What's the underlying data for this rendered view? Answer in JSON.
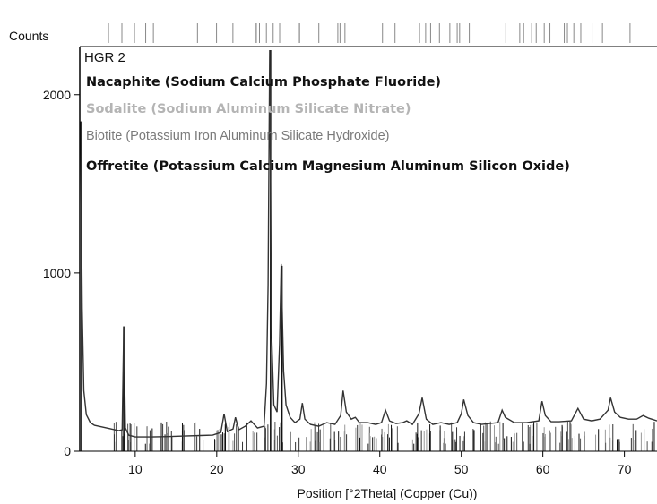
{
  "chart_data": {
    "type": "line",
    "title": "",
    "ylabel": "Counts",
    "xlabel": "Position [°2Theta] (Copper (Cu))",
    "sample_label": "HGR 2",
    "xlim": [
      3.2,
      74
    ],
    "ylim": [
      0,
      2270
    ],
    "x_ticks": [
      10,
      20,
      30,
      40,
      50,
      60,
      70
    ],
    "y_ticks": [
      0,
      1000,
      2000
    ],
    "grid": false,
    "legend_position": "top-left",
    "legend": [
      {
        "name": "Nacaphite (Sodium Calcium Phosphate Fluoride)",
        "color": "#111111"
      },
      {
        "name": "Sodalite (Sodium Aluminum Silicate Nitrate)",
        "color": "#b4b4b4"
      },
      {
        "name": "Biotite (Potassium Iron Aluminum Silicate Hydroxide)",
        "color": "#7a7a7a"
      },
      {
        "name": "Offretite (Potassium Calcium Magnesium Aluminum Silicon Oxide)",
        "color": "#111111"
      }
    ],
    "series": [
      {
        "color": "#333333",
        "points": [
          [
            3.3,
            1850
          ],
          [
            3.5,
            800
          ],
          [
            3.7,
            340
          ],
          [
            4.0,
            205
          ],
          [
            4.5,
            160
          ],
          [
            5,
            145
          ],
          [
            6,
            135
          ],
          [
            7,
            125
          ],
          [
            8,
            115
          ],
          [
            8.4,
            120
          ],
          [
            8.6,
            700
          ],
          [
            8.8,
            130
          ],
          [
            9.2,
            90
          ],
          [
            10,
            80
          ],
          [
            12,
            80
          ],
          [
            14,
            82
          ],
          [
            16,
            85
          ],
          [
            18,
            88
          ],
          [
            19.5,
            90
          ],
          [
            20.5,
            105
          ],
          [
            20.9,
            210
          ],
          [
            21.3,
            110
          ],
          [
            22,
            125
          ],
          [
            22.3,
            190
          ],
          [
            22.7,
            120
          ],
          [
            23.5,
            140
          ],
          [
            24.2,
            170
          ],
          [
            25,
            130
          ],
          [
            25.8,
            140
          ],
          [
            26.1,
            380
          ],
          [
            26.3,
            930
          ],
          [
            26.5,
            2250
          ],
          [
            26.7,
            700
          ],
          [
            27.0,
            260
          ],
          [
            27.4,
            220
          ],
          [
            27.7,
            600
          ],
          [
            27.9,
            1050
          ],
          [
            28.2,
            450
          ],
          [
            28.5,
            260
          ],
          [
            29,
            190
          ],
          [
            29.6,
            160
          ],
          [
            30.2,
            180
          ],
          [
            30.5,
            270
          ],
          [
            30.8,
            180
          ],
          [
            31.5,
            150
          ],
          [
            32.5,
            140
          ],
          [
            33.5,
            160
          ],
          [
            34.5,
            150
          ],
          [
            35.2,
            200
          ],
          [
            35.5,
            340
          ],
          [
            35.9,
            220
          ],
          [
            36.5,
            180
          ],
          [
            37,
            190
          ],
          [
            37.5,
            160
          ],
          [
            38.5,
            160
          ],
          [
            39.5,
            150
          ],
          [
            40.2,
            160
          ],
          [
            40.7,
            230
          ],
          [
            41.2,
            170
          ],
          [
            42,
            155
          ],
          [
            42.8,
            160
          ],
          [
            43.3,
            170
          ],
          [
            44,
            150
          ],
          [
            44.8,
            210
          ],
          [
            45.2,
            300
          ],
          [
            45.7,
            180
          ],
          [
            46.5,
            150
          ],
          [
            47.5,
            160
          ],
          [
            48.5,
            150
          ],
          [
            49.5,
            160
          ],
          [
            50.0,
            210
          ],
          [
            50.3,
            290
          ],
          [
            50.8,
            200
          ],
          [
            51.5,
            160
          ],
          [
            52.5,
            150
          ],
          [
            53.5,
            155
          ],
          [
            54.5,
            160
          ],
          [
            55.0,
            230
          ],
          [
            55.4,
            190
          ],
          [
            56.5,
            160
          ],
          [
            58,
            160
          ],
          [
            59.5,
            170
          ],
          [
            59.9,
            280
          ],
          [
            60.3,
            200
          ],
          [
            61,
            165
          ],
          [
            62,
            165
          ],
          [
            63.5,
            170
          ],
          [
            64.3,
            240
          ],
          [
            65,
            180
          ],
          [
            66,
            170
          ],
          [
            67,
            180
          ],
          [
            68.0,
            230
          ],
          [
            68.3,
            300
          ],
          [
            68.8,
            220
          ],
          [
            69.5,
            190
          ],
          [
            70.5,
            180
          ],
          [
            71.5,
            180
          ],
          [
            72.3,
            200
          ],
          [
            73,
            185
          ],
          [
            74,
            170
          ]
        ]
      }
    ],
    "reference_sticks": [
      {
        "position": 26.6,
        "height": 2250,
        "color": "#111111"
      },
      {
        "position": 3.4,
        "height": 1850,
        "color": "#333333"
      },
      {
        "position": 28.0,
        "height": 1040,
        "color": "#111111"
      },
      {
        "position": 8.6,
        "height": 700,
        "color": "#111111"
      }
    ]
  }
}
